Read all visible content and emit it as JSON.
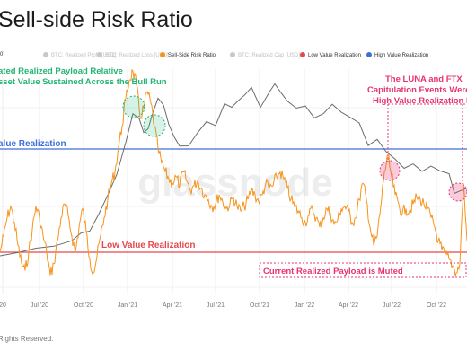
{
  "title": "Sell-side Risk Ratio",
  "footer": "Rights Reserved.",
  "watermark": "glassnode",
  "legend": [
    {
      "label": "0)",
      "color": "#555555",
      "muted": false,
      "dot": false
    },
    {
      "label": "BTC: Realized Profit [USD]",
      "color": "#c8c8c8",
      "muted": true,
      "dot": true
    },
    {
      "label": "BTC: Realized Loss [USD]",
      "color": "#c8c8c8",
      "muted": true,
      "dot": true
    },
    {
      "label": "Sell-Side Risk Ratio",
      "color": "#f7931a",
      "muted": false,
      "dot": true
    },
    {
      "label": "BTC: Realized Cap [USD]",
      "color": "#c8c8c8",
      "muted": true,
      "dot": true
    },
    {
      "label": "Low Value Realization",
      "color": "#e5484d",
      "muted": false,
      "dot": true
    },
    {
      "label": "High Value Realization",
      "color": "#3d6fd8",
      "muted": false,
      "dot": true
    }
  ],
  "annotations": {
    "green_text_1": "ated Realized Payload Relative",
    "green_text_2": "sset Value Sustained Across the Bull Run",
    "pink_text_1": "The LUNA and FTX",
    "pink_text_2": "Capitulation Events Were",
    "pink_text_3": "High Value Realization Ev",
    "high_label": "alue Realization",
    "low_label": "Low Value Realization",
    "current_label": "Current Realized Payload is Muted"
  },
  "colors": {
    "ratio": "#f7931a",
    "price": "#6b6b6b",
    "high": "#3d6fd8",
    "low": "#e5484d",
    "green": "#22b573",
    "pink": "#e8336e"
  },
  "chart_data": {
    "type": "line",
    "x_ticks": [
      "20",
      "Jul '20",
      "Oct '20",
      "Jan '21",
      "Apr '21",
      "Jul '21",
      "Oct '21",
      "Jan '22",
      "Apr '22",
      "Jul '22",
      "Oct '22"
    ],
    "thresholds": {
      "high_value_realization": 0.6,
      "low_value_realization": 0.15
    },
    "series": [
      {
        "name": "Sell-Side Risk Ratio",
        "t": [
          0,
          4,
          8,
          12,
          16,
          20,
          24,
          28,
          32,
          36,
          40,
          44,
          48,
          52,
          56,
          60,
          64,
          68,
          72,
          76,
          80,
          84,
          88,
          92,
          96,
          100,
          104,
          108,
          112,
          116,
          120,
          124,
          128,
          132,
          136,
          140,
          144,
          148,
          152,
          156,
          160,
          164,
          168,
          172,
          176,
          180,
          184,
          188,
          192,
          196,
          200,
          204,
          208,
          212,
          216,
          220,
          224,
          228,
          232,
          236,
          240,
          244,
          248,
          252,
          256,
          260,
          264,
          268,
          272,
          276,
          280,
          284,
          288,
          292,
          296,
          300,
          304,
          308,
          312,
          316,
          320,
          324,
          328,
          332,
          336,
          340,
          344,
          348,
          352,
          356,
          360,
          364,
          368,
          372,
          376,
          380,
          384,
          388,
          392,
          396,
          400,
          404,
          408,
          412,
          416,
          420,
          424,
          428,
          432,
          436,
          440,
          444,
          448,
          452,
          456,
          460,
          464,
          468,
          472,
          476,
          480,
          484,
          488,
          492,
          496,
          500,
          504,
          508,
          512,
          516,
          520
        ],
        "values": [
          0.15,
          0.22,
          0.3,
          0.35,
          0.28,
          0.18,
          0.1,
          0.07,
          0.15,
          0.25,
          0.35,
          0.3,
          0.22,
          0.15,
          0.05,
          0.1,
          0.2,
          0.3,
          0.36,
          0.31,
          0.22,
          0.15,
          0.26,
          0.34,
          0.24,
          0.12,
          0.06,
          0.13,
          0.22,
          0.3,
          0.38,
          0.45,
          0.5,
          0.61,
          0.7,
          0.82,
          0.9,
          0.94,
          0.88,
          0.74,
          0.78,
          0.85,
          0.8,
          0.7,
          0.6,
          0.54,
          0.5,
          0.47,
          0.45,
          0.48,
          0.44,
          0.5,
          0.46,
          0.42,
          0.44,
          0.46,
          0.43,
          0.4,
          0.38,
          0.35,
          0.36,
          0.4,
          0.37,
          0.34,
          0.36,
          0.39,
          0.35,
          0.33,
          0.35,
          0.38,
          0.42,
          0.4,
          0.37,
          0.4,
          0.45,
          0.43,
          0.44,
          0.48,
          0.5,
          0.47,
          0.43,
          0.38,
          0.35,
          0.33,
          0.3,
          0.28,
          0.31,
          0.34,
          0.3,
          0.26,
          0.3,
          0.34,
          0.32,
          0.27,
          0.29,
          0.34,
          0.35,
          0.33,
          0.28,
          0.3,
          0.38,
          0.45,
          0.38,
          0.26,
          0.18,
          0.22,
          0.35,
          0.5,
          0.56,
          0.48,
          0.4,
          0.36,
          0.32,
          0.34,
          0.33,
          0.36,
          0.39,
          0.38,
          0.36,
          0.34,
          0.3,
          0.26,
          0.2,
          0.16,
          0.14,
          0.12,
          0.09,
          0.06,
          0.1,
          0.45,
          0.2
        ]
      }
    ]
  }
}
